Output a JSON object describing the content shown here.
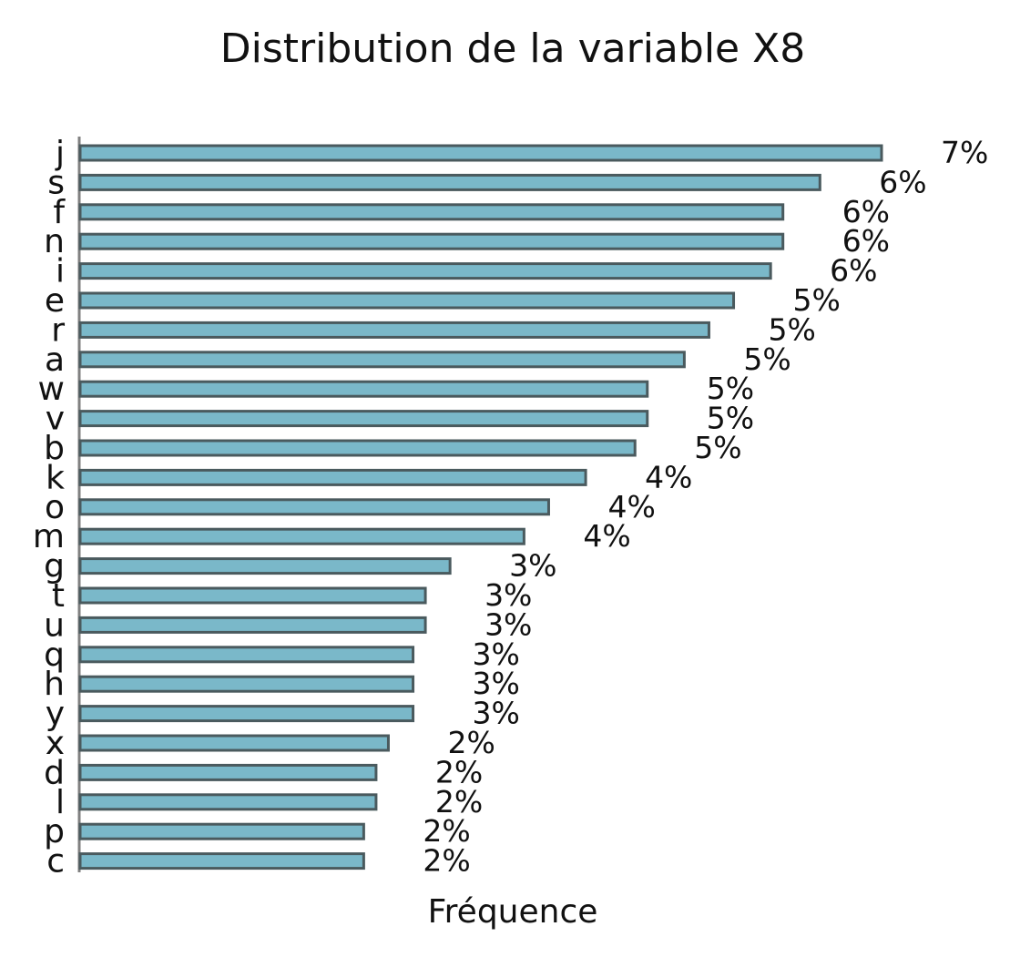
{
  "chart_data": {
    "type": "bar",
    "orientation": "horizontal",
    "title": "Distribution de la variable X8",
    "xlabel": "Fréquence",
    "ylabel": "",
    "categories": [
      "j",
      "s",
      "f",
      "n",
      "i",
      "e",
      "r",
      "a",
      "w",
      "v",
      "b",
      "k",
      "o",
      "m",
      "g",
      "t",
      "u",
      "q",
      "h",
      "y",
      "x",
      "d",
      "l",
      "p",
      "c"
    ],
    "values": [
      6.5,
      6.0,
      5.7,
      5.7,
      5.6,
      5.3,
      5.1,
      4.9,
      4.6,
      4.6,
      4.5,
      4.1,
      3.8,
      3.6,
      3.0,
      2.8,
      2.8,
      2.7,
      2.7,
      2.7,
      2.5,
      2.4,
      2.4,
      2.3,
      2.3
    ],
    "data_labels": [
      "7%",
      "6%",
      "6%",
      "6%",
      "6%",
      "5%",
      "5%",
      "5%",
      "5%",
      "5%",
      "5%",
      "4%",
      "4%",
      "4%",
      "3%",
      "3%",
      "3%",
      "3%",
      "3%",
      "3%",
      "2%",
      "2%",
      "2%",
      "2%",
      "2%"
    ],
    "value_unit": "%",
    "xlim": [
      0,
      6.5
    ],
    "grid": false,
    "legend": "none",
    "colors": {
      "bar_fill": "#7ab8c9",
      "bar_edge": "#4a5a5e",
      "axis": "#808080",
      "text": "#111111"
    }
  }
}
